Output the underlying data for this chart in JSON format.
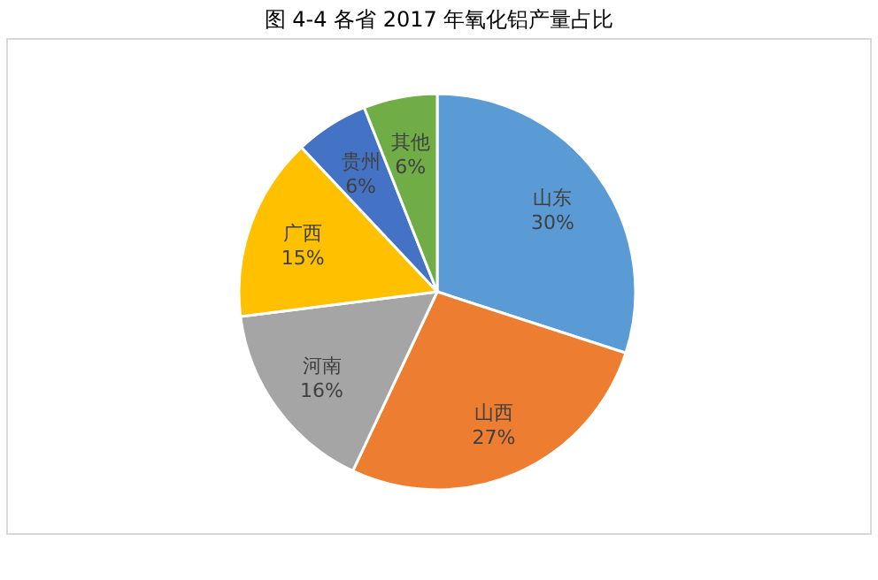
{
  "chart_data": {
    "type": "pie",
    "title": "图 4-4 各省 2017 年氧化铝产量占比",
    "categories": [
      "山东",
      "山西",
      "河南",
      "广西",
      "贵州",
      "其他"
    ],
    "values": [
      30,
      27,
      16,
      15,
      6,
      6
    ],
    "colors": [
      "#5b9bd5",
      "#ed7d31",
      "#a5a5a5",
      "#ffc000",
      "#4472c4",
      "#70ad47"
    ],
    "value_labels": [
      "30%",
      "27%",
      "16%",
      "15%",
      "6%",
      "6%"
    ]
  }
}
